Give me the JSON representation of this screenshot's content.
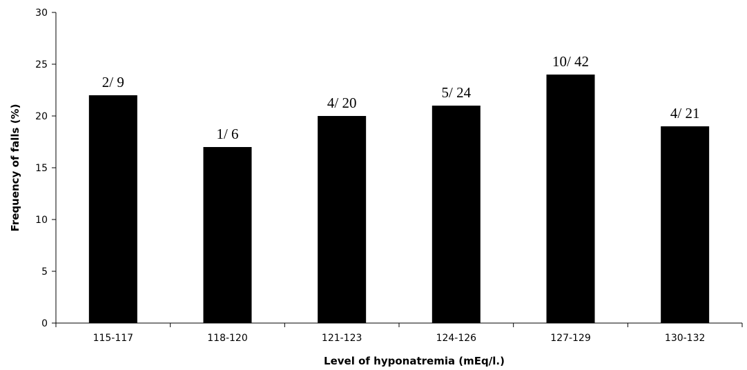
{
  "chart_data": {
    "type": "bar",
    "title": "",
    "xlabel": "Level of hyponatremia (mEq/l.)",
    "ylabel": "Frequency of falls (%)",
    "ylim": [
      0,
      30
    ],
    "yticks": [
      0,
      5,
      10,
      15,
      20,
      25,
      30
    ],
    "categories": [
      "115-117",
      "118-120",
      "121-123",
      "124-126",
      "127-129",
      "130-132"
    ],
    "values": [
      22,
      17,
      20,
      21,
      24,
      19
    ],
    "data_labels": [
      "2/ 9",
      "1/ 6",
      "4/ 20",
      "5/ 24",
      "10/ 42",
      "4/ 21"
    ],
    "bar_color": "#000000",
    "grid": false,
    "legend": "none"
  }
}
